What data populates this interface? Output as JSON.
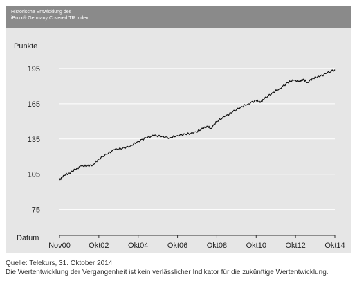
{
  "header": {
    "line1": "Historische Entwicklung des",
    "line2": "iBoxx® Germany Covered TR Index"
  },
  "footer": {
    "source": "Quelle: Telekurs, 31. Oktober 2014",
    "disclaimer": "Die Wertentwicklung der Vergangenheit ist kein verlässlicher Indikator für die zukünftige Wertentwicklung."
  },
  "colors": {
    "header_bg": "#8a8a8a",
    "plot_bg": "#e6e6e6",
    "line": "#111111",
    "grid": "#ffffff"
  },
  "chart_data": {
    "type": "line",
    "title": "",
    "ylabel": "Punkte",
    "xlabel": "Datum",
    "yticks": [
      75,
      105,
      135,
      165,
      195
    ],
    "ylim": [
      53,
      225
    ],
    "x_categories": [
      "Nov00",
      "Okt02",
      "Okt04",
      "Okt06",
      "Okt08",
      "Okt10",
      "Okt12",
      "Okt14"
    ],
    "grid": true,
    "series": [
      {
        "values": [
          [
            0,
            100
          ],
          [
            0.1,
            104
          ],
          [
            0.25,
            106
          ],
          [
            0.4,
            109
          ],
          [
            0.55,
            112
          ],
          [
            0.7,
            112
          ],
          [
            0.85,
            113
          ],
          [
            1.0,
            118
          ],
          [
            1.2,
            122
          ],
          [
            1.4,
            126
          ],
          [
            1.6,
            127
          ],
          [
            1.8,
            129
          ],
          [
            2.0,
            133
          ],
          [
            2.2,
            136
          ],
          [
            2.4,
            138
          ],
          [
            2.6,
            137
          ],
          [
            2.8,
            136
          ],
          [
            3.0,
            138
          ],
          [
            3.2,
            139
          ],
          [
            3.4,
            140
          ],
          [
            3.6,
            143
          ],
          [
            3.75,
            146
          ],
          [
            3.85,
            144
          ],
          [
            4.0,
            150
          ],
          [
            4.2,
            154
          ],
          [
            4.4,
            158
          ],
          [
            4.6,
            162
          ],
          [
            4.8,
            165
          ],
          [
            5.0,
            168
          ],
          [
            5.1,
            166
          ],
          [
            5.2,
            169
          ],
          [
            5.4,
            174
          ],
          [
            5.6,
            178
          ],
          [
            5.8,
            183
          ],
          [
            5.95,
            185
          ],
          [
            6.1,
            184
          ],
          [
            6.2,
            186
          ],
          [
            6.3,
            183
          ],
          [
            6.45,
            187
          ],
          [
            6.6,
            188
          ],
          [
            6.8,
            191
          ],
          [
            7.0,
            194
          ]
        ]
      }
    ]
  }
}
